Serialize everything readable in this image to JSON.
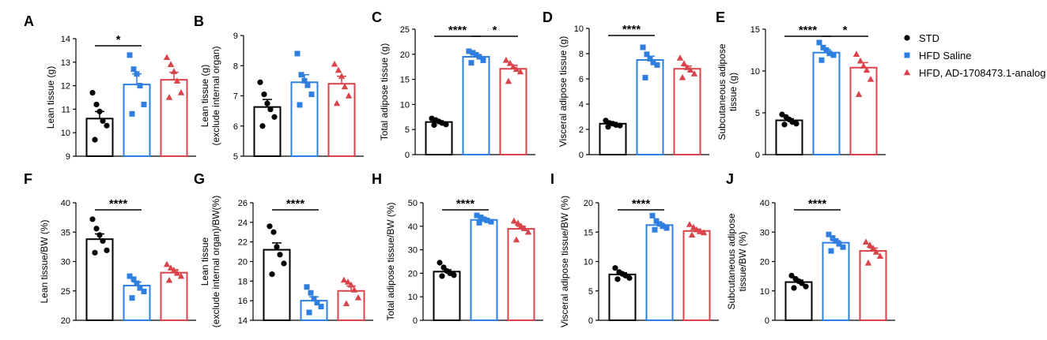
{
  "legend": [
    {
      "name": "STD",
      "color": "#000000",
      "marker": "circle"
    },
    {
      "name": "HFD Saline",
      "color": "#2f7fe0",
      "marker": "square"
    },
    {
      "name": "HFD, AD-1708473.1-analog",
      "color": "#d9434a",
      "marker": "triangle"
    }
  ],
  "chart_data": [
    {
      "panel": "A",
      "type": "bar",
      "ylabel": [
        "Lean tissue (g)"
      ],
      "ylim": [
        9,
        14
      ],
      "yticks": [
        9,
        10,
        11,
        12,
        13,
        14
      ],
      "series": [
        {
          "name": "STD",
          "mean": 10.6,
          "sem": 0.3,
          "points": [
            11.7,
            11.2,
            10.9,
            10.5,
            10.3,
            9.7
          ]
        },
        {
          "name": "HFD Saline",
          "mean": 12.05,
          "sem": 0.45,
          "points": [
            13.3,
            12.7,
            12.5,
            12.0,
            11.2,
            10.8
          ]
        },
        {
          "name": "HFD, AD-1708473.1-analog",
          "mean": 12.25,
          "sem": 0.32,
          "points": [
            13.2,
            12.9,
            12.6,
            12.2,
            11.7,
            11.5
          ]
        }
      ],
      "significance": [
        {
          "from": 0,
          "to": 1,
          "label": "*"
        }
      ]
    },
    {
      "panel": "B",
      "type": "bar",
      "ylabel": [
        "Lean tissue (g)",
        "(exclude internal organ)"
      ],
      "ylim": [
        5,
        9
      ],
      "yticks": [
        5,
        6,
        7,
        8,
        9
      ],
      "series": [
        {
          "name": "STD",
          "mean": 6.63,
          "sem": 0.25,
          "points": [
            7.45,
            7.05,
            6.75,
            6.55,
            6.3,
            6.0
          ]
        },
        {
          "name": "HFD Saline",
          "mean": 7.45,
          "sem": 0.25,
          "points": [
            8.4,
            7.7,
            7.5,
            7.35,
            7.05,
            6.7
          ]
        },
        {
          "name": "HFD, AD-1708473.1-analog",
          "mean": 7.4,
          "sem": 0.25,
          "points": [
            8.05,
            7.85,
            7.65,
            7.3,
            7.0,
            6.75
          ]
        }
      ],
      "significance": []
    },
    {
      "panel": "C",
      "type": "bar",
      "ylabel": [
        "Total adipose tissue (g)"
      ],
      "ylim": [
        0,
        25
      ],
      "yticks": [
        0,
        5,
        10,
        15,
        20,
        25
      ],
      "series": [
        {
          "name": "STD",
          "mean": 6.5,
          "sem": 0.25,
          "points": [
            7.2,
            6.9,
            6.6,
            6.3,
            6.0,
            5.9
          ]
        },
        {
          "name": "HFD Saline",
          "mean": 19.5,
          "sem": 0.45,
          "points": [
            20.6,
            20.3,
            19.9,
            19.5,
            18.8,
            18.3
          ]
        },
        {
          "name": "HFD, AD-1708473.1-analog",
          "mean": 17.1,
          "sem": 0.7,
          "points": [
            18.8,
            18.2,
            17.5,
            17.0,
            16.5,
            14.6
          ]
        }
      ],
      "significance": [
        {
          "from": 0,
          "to": 1,
          "label": "****"
        },
        {
          "from": 1,
          "to": 2,
          "label": "*"
        }
      ]
    },
    {
      "panel": "D",
      "type": "bar",
      "ylabel": [
        "Visceral adipose tissue (g)"
      ],
      "ylim": [
        0,
        10
      ],
      "yticks": [
        0,
        2,
        4,
        6,
        8,
        10
      ],
      "series": [
        {
          "name": "STD",
          "mean": 2.45,
          "sem": 0.1,
          "points": [
            2.7,
            2.5,
            2.45,
            2.35,
            2.3,
            2.2
          ]
        },
        {
          "name": "HFD Saline",
          "mean": 7.5,
          "sem": 0.3,
          "points": [
            8.5,
            7.95,
            7.6,
            7.3,
            7.1,
            6.1
          ]
        },
        {
          "name": "HFD, AD-1708473.1-analog",
          "mean": 6.8,
          "sem": 0.22,
          "points": [
            7.65,
            7.2,
            6.9,
            6.7,
            6.4,
            6.1
          ]
        }
      ],
      "significance": [
        {
          "from": 0,
          "to": 1,
          "label": "****"
        }
      ]
    },
    {
      "panel": "E",
      "type": "bar",
      "ylabel": [
        "Subcutaneous adipose",
        "tissue (g)"
      ],
      "ylim": [
        0,
        15
      ],
      "yticks": [
        0,
        5,
        10,
        15
      ],
      "series": [
        {
          "name": "STD",
          "mean": 4.1,
          "sem": 0.2,
          "points": [
            4.8,
            4.5,
            4.2,
            3.9,
            3.7,
            3.6
          ]
        },
        {
          "name": "HFD Saline",
          "mean": 12.2,
          "sem": 0.35,
          "points": [
            13.4,
            12.8,
            12.5,
            12.1,
            11.9,
            11.3
          ]
        },
        {
          "name": "HFD, AD-1708473.1-analog",
          "mean": 10.4,
          "sem": 0.6,
          "points": [
            12.0,
            11.2,
            10.6,
            10.1,
            9.0,
            7.2
          ]
        }
      ],
      "significance": [
        {
          "from": 0,
          "to": 1,
          "label": "****"
        },
        {
          "from": 1,
          "to": 2,
          "label": "*"
        }
      ]
    },
    {
      "panel": "F",
      "type": "bar",
      "ylabel": [
        "Lean tissue/BW (%)"
      ],
      "ylim": [
        20,
        40
      ],
      "yticks": [
        20,
        25,
        30,
        35,
        40
      ],
      "series": [
        {
          "name": "STD",
          "mean": 33.8,
          "sem": 0.9,
          "points": [
            37.2,
            35.6,
            34.5,
            33.5,
            31.9,
            31.5
          ]
        },
        {
          "name": "HFD Saline",
          "mean": 25.9,
          "sem": 0.6,
          "points": [
            27.5,
            27.0,
            26.3,
            25.5,
            24.9,
            23.8
          ]
        },
        {
          "name": "HFD, AD-1708473.1-analog",
          "mean": 28.1,
          "sem": 0.5,
          "points": [
            29.5,
            28.9,
            28.5,
            28.0,
            27.5,
            26.8
          ]
        }
      ],
      "significance": [
        {
          "from": 0,
          "to": 1,
          "label": "****"
        }
      ]
    },
    {
      "panel": "G",
      "type": "bar",
      "ylabel": [
        "Lean tissue",
        "(exclude internal organ)/BW(%)"
      ],
      "ylim": [
        14,
        26
      ],
      "yticks": [
        14,
        16,
        18,
        20,
        22,
        24,
        26
      ],
      "series": [
        {
          "name": "STD",
          "mean": 21.2,
          "sem": 0.7,
          "points": [
            23.6,
            23.0,
            21.5,
            20.7,
            19.8,
            18.7
          ]
        },
        {
          "name": "HFD Saline",
          "mean": 16.0,
          "sem": 0.4,
          "points": [
            17.4,
            16.8,
            16.2,
            15.8,
            15.4,
            14.8
          ]
        },
        {
          "name": "HFD, AD-1708473.1-analog",
          "mean": 17.0,
          "sem": 0.5,
          "points": [
            18.1,
            17.9,
            17.6,
            17.1,
            16.3,
            15.7
          ]
        }
      ],
      "significance": [
        {
          "from": 0,
          "to": 1,
          "label": "****"
        }
      ]
    },
    {
      "panel": "H",
      "type": "bar",
      "ylabel": [
        "Total adipose tissue/BW (%)"
      ],
      "ylim": [
        0,
        50
      ],
      "yticks": [
        0,
        10,
        20,
        30,
        40,
        50
      ],
      "series": [
        {
          "name": "STD",
          "mean": 20.7,
          "sem": 0.8,
          "points": [
            24.5,
            22.5,
            21.0,
            20.0,
            19.2,
            18.8
          ]
        },
        {
          "name": "HFD Saline",
          "mean": 42.7,
          "sem": 0.6,
          "points": [
            44.6,
            43.8,
            43.0,
            42.5,
            41.9,
            41.5
          ]
        },
        {
          "name": "HFD, AD-1708473.1-analog",
          "mean": 38.9,
          "sem": 1.1,
          "points": [
            42.2,
            41.3,
            40.0,
            39.0,
            37.5,
            34.2
          ]
        }
      ],
      "significance": [
        {
          "from": 0,
          "to": 1,
          "label": "****"
        }
      ]
    },
    {
      "panel": "I",
      "type": "bar",
      "ylabel": [
        "Visceral adipose tissue/BW (%)"
      ],
      "ylim": [
        0,
        20
      ],
      "yticks": [
        0,
        5,
        10,
        15,
        20
      ],
      "series": [
        {
          "name": "STD",
          "mean": 7.8,
          "sem": 0.3,
          "points": [
            8.9,
            8.2,
            7.9,
            7.6,
            7.2,
            7.0
          ]
        },
        {
          "name": "HFD Saline",
          "mean": 16.2,
          "sem": 0.3,
          "points": [
            17.8,
            16.9,
            16.4,
            16.0,
            15.7,
            15.4
          ]
        },
        {
          "name": "HFD, AD-1708473.1-analog",
          "mean": 15.2,
          "sem": 0.3,
          "points": [
            16.3,
            15.8,
            15.4,
            15.1,
            14.9,
            14.5
          ]
        }
      ],
      "significance": [
        {
          "from": 0,
          "to": 1,
          "label": "****"
        }
      ]
    },
    {
      "panel": "J",
      "type": "bar",
      "ylabel": [
        "Subcutaneous adipose",
        "tissue/BW (%)"
      ],
      "ylim": [
        0,
        40
      ],
      "yticks": [
        0,
        10,
        20,
        30,
        40
      ],
      "series": [
        {
          "name": "STD",
          "mean": 13.0,
          "sem": 0.7,
          "points": [
            15.2,
            14.1,
            13.3,
            12.6,
            11.5,
            11.0
          ]
        },
        {
          "name": "HFD Saline",
          "mean": 26.4,
          "sem": 0.7,
          "points": [
            29.2,
            28.0,
            27.0,
            26.0,
            24.9,
            23.6
          ]
        },
        {
          "name": "HFD, AD-1708473.1-analog",
          "mean": 23.6,
          "sem": 1.0,
          "points": [
            26.6,
            25.6,
            24.5,
            23.2,
            21.8,
            19.5
          ]
        }
      ],
      "significance": [
        {
          "from": 0,
          "to": 1,
          "label": "****"
        }
      ]
    }
  ]
}
